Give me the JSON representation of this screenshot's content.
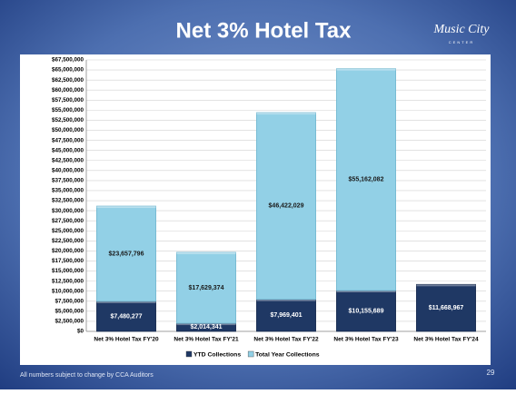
{
  "header": {
    "title": "Net 3% Hotel Tax",
    "logo_text": "Music City",
    "logo_subtext": "CENTER"
  },
  "footer": {
    "note": "All numbers subject to change by CCA Auditors",
    "page": "29"
  },
  "chart_data": {
    "type": "bar",
    "stacked": true,
    "categories": [
      "Net 3% Hotel Tax FY'20",
      "Net 3% Hotel Tax FY'21",
      "Net 3% Hotel Tax FY'22",
      "Net 3% Hotel Tax FY'23",
      "Net 3% Hotel Tax FY'24"
    ],
    "series": [
      {
        "name": "YTD Collections",
        "color": "#1f3864",
        "values": [
          7480277,
          2014341,
          7969401,
          10155689,
          11668967
        ],
        "value_labels": [
          "$7,480,277",
          "$2,014,341",
          "$7,969,401",
          "$10,155,689",
          "$11,668,967"
        ]
      },
      {
        "name": "Total Year Collections",
        "color": "#92d0e6",
        "values": [
          23657796,
          17629374,
          46422029,
          55162082,
          null
        ],
        "value_labels": [
          "$23,657,796",
          "$17,629,374",
          "$46,422,029",
          "$55,162,082",
          null
        ]
      }
    ],
    "ylim": [
      0,
      67500000
    ],
    "yticks": [
      {
        "value": 0,
        "label": "$0"
      },
      {
        "value": 2500000,
        "label": "$2,500,000"
      },
      {
        "value": 5000000,
        "label": "$5,000,000"
      },
      {
        "value": 7500000,
        "label": "$7,500,000"
      },
      {
        "value": 10000000,
        "label": "$10,000,000"
      },
      {
        "value": 12500000,
        "label": "$12,500,000"
      },
      {
        "value": 15000000,
        "label": "$15,000,000"
      },
      {
        "value": 17500000,
        "label": "$17,500,000"
      },
      {
        "value": 20000000,
        "label": "$20,000,000"
      },
      {
        "value": 22500000,
        "label": "$22,500,000"
      },
      {
        "value": 25000000,
        "label": "$25,000,000"
      },
      {
        "value": 27500000,
        "label": "$27,500,000"
      },
      {
        "value": 30000000,
        "label": "$30,000,000"
      },
      {
        "value": 32500000,
        "label": "$32,500,000"
      },
      {
        "value": 35000000,
        "label": "$35,000,000"
      },
      {
        "value": 37500000,
        "label": "$37,500,000"
      },
      {
        "value": 40000000,
        "label": "$40,000,000"
      },
      {
        "value": 42500000,
        "label": "$42,500,000"
      },
      {
        "value": 45000000,
        "label": "$45,000,000"
      },
      {
        "value": 47500000,
        "label": "$47,500,000"
      },
      {
        "value": 50000000,
        "label": "$50,000,000"
      },
      {
        "value": 52500000,
        "label": "$52,500,000"
      },
      {
        "value": 55000000,
        "label": "$55,000,000"
      },
      {
        "value": 57500000,
        "label": "$57,500,000"
      },
      {
        "value": 60000000,
        "label": "$60,000,000"
      },
      {
        "value": 62500000,
        "label": "$62,500,000"
      },
      {
        "value": 65000000,
        "label": "$65,000,000"
      },
      {
        "value": 67500000,
        "label": "$67,500,000"
      }
    ],
    "grid": true,
    "legend": "bottom"
  }
}
